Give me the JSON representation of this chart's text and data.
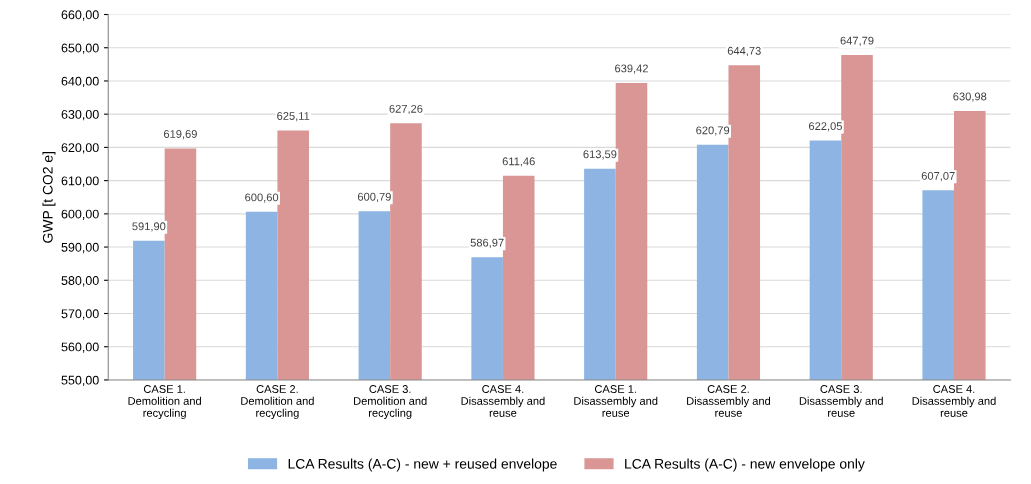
{
  "chart_data": {
    "type": "bar",
    "ylabel": "GWP [t CO2 e]",
    "categories": [
      "CASE 1.\nDemolition and\nrecycling",
      "CASE 2.\nDemolition and\nrecycling",
      "CASE 3.\nDemolition and\nrecycling",
      "CASE 4.\nDisassembly and\nreuse",
      "CASE 1.\nDisassembly and\nreuse",
      "CASE 2.\nDisassembly and\nreuse",
      "CASE 3.\nDisassembly and\nreuse",
      "CASE 4.\nDisassembly and\nreuse"
    ],
    "series": [
      {
        "name": "LCA Results (A-C) - new + reused envelope",
        "color": "#8db4e2",
        "values": [
          591.9,
          600.6,
          600.79,
          586.97,
          613.59,
          620.79,
          622.05,
          607.07
        ],
        "value_labels": [
          "591,90",
          "600,60",
          "600,79",
          "586,97",
          "613,59",
          "620,79",
          "622,05",
          "607,07"
        ]
      },
      {
        "name": "LCA Results (A-C) - new envelope only",
        "color": "#d99694",
        "values": [
          619.69,
          625.11,
          627.26,
          611.46,
          639.42,
          644.73,
          647.79,
          630.98
        ],
        "value_labels": [
          "619,69",
          "625,11",
          "627,26",
          "611,46",
          "639,42",
          "644,73",
          "647,79",
          "630,98"
        ]
      }
    ],
    "ylim": [
      550,
      660
    ],
    "yticks": [
      {
        "value": 550,
        "label": "550,00"
      },
      {
        "value": 560,
        "label": "560,00"
      },
      {
        "value": 570,
        "label": "570,00"
      },
      {
        "value": 580,
        "label": "580,00"
      },
      {
        "value": 590,
        "label": "590,00"
      },
      {
        "value": 600,
        "label": "600,00"
      },
      {
        "value": 610,
        "label": "610,00"
      },
      {
        "value": 620,
        "label": "620,00"
      },
      {
        "value": 630,
        "label": "630,00"
      },
      {
        "value": 640,
        "label": "640,00"
      },
      {
        "value": 650,
        "label": "650,00"
      },
      {
        "value": 660,
        "label": "660,00"
      }
    ],
    "grid": "y",
    "legend": "bottom"
  }
}
